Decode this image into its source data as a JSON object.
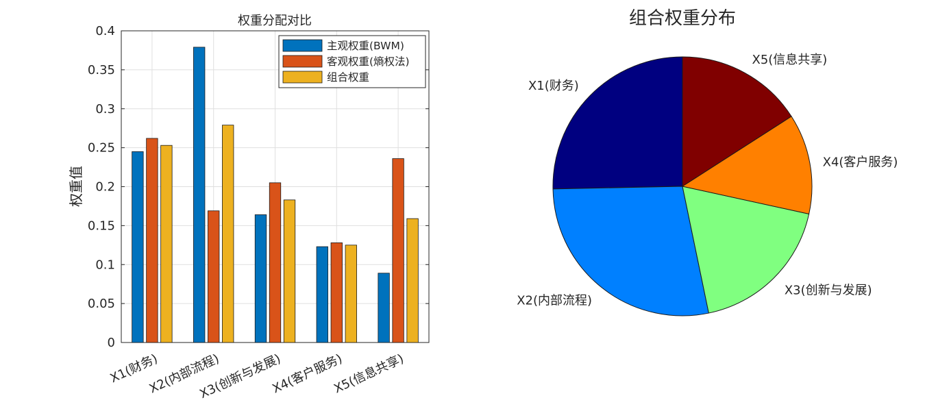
{
  "chart_data": [
    {
      "type": "bar",
      "title": "权重分配对比",
      "xlabel": "",
      "ylabel": "权重值",
      "categories": [
        "X1(财务)",
        "X2(内部流程)",
        "X3(创新与发展)",
        "X4(客户服务)",
        "X5(信息共享)"
      ],
      "series": [
        {
          "name": "主观权重(BWM)",
          "color": "#0072BD",
          "values": [
            0.245,
            0.379,
            0.164,
            0.123,
            0.089
          ]
        },
        {
          "name": "客观权重(熵权法)",
          "color": "#D95319",
          "values": [
            0.262,
            0.169,
            0.205,
            0.128,
            0.236
          ]
        },
        {
          "name": "组合权重",
          "color": "#EDB120",
          "values": [
            0.253,
            0.279,
            0.183,
            0.125,
            0.159
          ]
        }
      ],
      "ylim": [
        0,
        0.4
      ],
      "yticks": [
        "0",
        "0.05",
        "0.1",
        "0.15",
        "0.2",
        "0.25",
        "0.3",
        "0.35",
        "0.4"
      ],
      "grid": true,
      "legend_position": "top-right"
    },
    {
      "type": "pie",
      "title": "组合权重分布",
      "slices": [
        {
          "label": "X1(财务)",
          "value": 0.253,
          "color": "#000080"
        },
        {
          "label": "X2(内部流程)",
          "value": 0.279,
          "color": "#0080FF"
        },
        {
          "label": "X3(创新与发展)",
          "value": 0.183,
          "color": "#80FF80"
        },
        {
          "label": "X4(客户服务)",
          "value": 0.125,
          "color": "#FF8000"
        },
        {
          "label": "X5(信息共享)",
          "value": 0.159,
          "color": "#800000"
        }
      ]
    }
  ]
}
